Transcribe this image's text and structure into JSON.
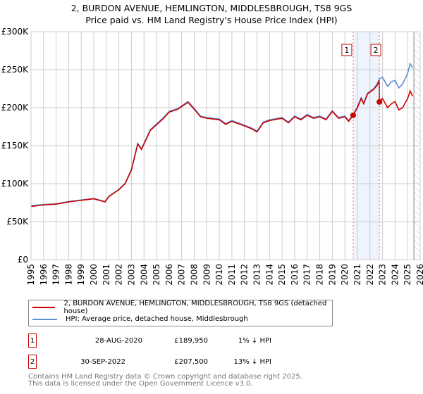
{
  "title": [
    "2, BURDON AVENUE, HEMLINGTON, MIDDLESBROUGH, TS8 9GS",
    "Price paid vs. HM Land Registry's House Price Index (HPI)"
  ],
  "chart_data": {
    "type": "line",
    "xlim": [
      1995,
      2026
    ],
    "ylim": [
      0,
      300000
    ],
    "x_ticks": [
      "1995",
      "1996",
      "1997",
      "1998",
      "1999",
      "2000",
      "2001",
      "2002",
      "2003",
      "2004",
      "2005",
      "2006",
      "2007",
      "2008",
      "2009",
      "2010",
      "2011",
      "2012",
      "2013",
      "2014",
      "2015",
      "2016",
      "2017",
      "2018",
      "2019",
      "2020",
      "2021",
      "2022",
      "2023",
      "2024",
      "2025",
      "2026"
    ],
    "y_ticks": [
      {
        "v": 0,
        "label": "£0"
      },
      {
        "v": 50000,
        "label": "£50K"
      },
      {
        "v": 100000,
        "label": "£100K"
      },
      {
        "v": 150000,
        "label": "£150K"
      },
      {
        "v": 200000,
        "label": "£200K"
      },
      {
        "v": 250000,
        "label": "£250K"
      },
      {
        "v": 300000,
        "label": "£300K"
      }
    ],
    "grid": true,
    "series": [
      {
        "name": "2, BURDON AVENUE, HEMLINGTON, MIDDLESBROUGH, TS8 9GS (detached house)",
        "color": "#cc0000",
        "points": [
          [
            1995,
            70000
          ],
          [
            1996,
            72000
          ],
          [
            1997,
            73000
          ],
          [
            1998,
            76000
          ],
          [
            1999,
            78000
          ],
          [
            2000,
            80000
          ],
          [
            2000.9,
            76000
          ],
          [
            2001.2,
            83000
          ],
          [
            2002,
            92000
          ],
          [
            2002.5,
            100000
          ],
          [
            2003,
            118000
          ],
          [
            2003.5,
            152000
          ],
          [
            2003.8,
            145000
          ],
          [
            2004.5,
            170000
          ],
          [
            2005.5,
            185000
          ],
          [
            2006,
            194000
          ],
          [
            2006.7,
            198000
          ],
          [
            2007.5,
            207000
          ],
          [
            2008,
            198000
          ],
          [
            2008.5,
            188000
          ],
          [
            2009,
            186000
          ],
          [
            2010,
            184000
          ],
          [
            2010.5,
            178000
          ],
          [
            2011,
            182000
          ],
          [
            2012,
            176000
          ],
          [
            2012.6,
            172000
          ],
          [
            2013,
            168000
          ],
          [
            2013.5,
            180000
          ],
          [
            2014,
            183000
          ],
          [
            2015,
            186000
          ],
          [
            2015.5,
            180000
          ],
          [
            2016,
            188000
          ],
          [
            2016.5,
            184000
          ],
          [
            2017,
            190000
          ],
          [
            2017.5,
            186000
          ],
          [
            2018,
            188000
          ],
          [
            2018.5,
            184000
          ],
          [
            2019,
            195000
          ],
          [
            2019.5,
            186000
          ],
          [
            2020,
            188000
          ],
          [
            2020.3,
            182000
          ],
          [
            2020.66,
            189950
          ],
          [
            2021,
            200000
          ],
          [
            2021.3,
            212000
          ],
          [
            2021.5,
            205000
          ],
          [
            2021.8,
            218000
          ],
          [
            2022.3,
            224000
          ],
          [
            2022.6,
            230000
          ],
          [
            2022.74,
            236000
          ],
          [
            2022.75,
            207500
          ],
          [
            2023,
            212000
          ],
          [
            2023.4,
            200000
          ],
          [
            2023.7,
            205000
          ],
          [
            2024,
            208000
          ],
          [
            2024.3,
            197000
          ],
          [
            2024.6,
            200000
          ],
          [
            2025,
            212000
          ],
          [
            2025.2,
            222000
          ],
          [
            2025.4,
            215000
          ]
        ]
      },
      {
        "name": "HPI: Average price, detached house, Middlesbrough",
        "color": "#5b8fd4",
        "points": [
          [
            1995,
            71000
          ],
          [
            1996,
            72500
          ],
          [
            1997,
            73500
          ],
          [
            1998,
            76500
          ],
          [
            1999,
            78500
          ],
          [
            2000,
            80500
          ],
          [
            2000.9,
            76500
          ],
          [
            2001.2,
            83500
          ],
          [
            2002,
            92500
          ],
          [
            2002.5,
            100500
          ],
          [
            2003,
            119000
          ],
          [
            2003.5,
            153000
          ],
          [
            2003.8,
            146000
          ],
          [
            2004.5,
            171000
          ],
          [
            2005.5,
            186000
          ],
          [
            2006,
            195000
          ],
          [
            2006.7,
            199000
          ],
          [
            2007.5,
            208000
          ],
          [
            2008,
            199000
          ],
          [
            2008.5,
            189000
          ],
          [
            2009,
            187000
          ],
          [
            2010,
            185000
          ],
          [
            2010.5,
            179000
          ],
          [
            2011,
            183000
          ],
          [
            2012,
            177000
          ],
          [
            2012.6,
            173000
          ],
          [
            2013,
            169000
          ],
          [
            2013.5,
            181000
          ],
          [
            2014,
            184000
          ],
          [
            2015,
            187000
          ],
          [
            2015.5,
            181000
          ],
          [
            2016,
            189000
          ],
          [
            2016.5,
            185000
          ],
          [
            2017,
            191000
          ],
          [
            2017.5,
            187000
          ],
          [
            2018,
            189000
          ],
          [
            2018.5,
            185000
          ],
          [
            2019,
            196000
          ],
          [
            2019.5,
            187000
          ],
          [
            2020,
            189000
          ],
          [
            2020.3,
            183000
          ],
          [
            2020.66,
            191000
          ],
          [
            2021,
            201000
          ],
          [
            2021.3,
            213000
          ],
          [
            2021.5,
            206000
          ],
          [
            2021.8,
            219000
          ],
          [
            2022.3,
            225000
          ],
          [
            2022.6,
            232000
          ],
          [
            2022.75,
            238000
          ],
          [
            2023,
            240000
          ],
          [
            2023.4,
            228000
          ],
          [
            2023.7,
            234000
          ],
          [
            2024,
            236000
          ],
          [
            2024.3,
            226000
          ],
          [
            2024.6,
            231000
          ],
          [
            2025,
            245000
          ],
          [
            2025.2,
            258000
          ],
          [
            2025.4,
            252000
          ]
        ]
      }
    ],
    "sales": [
      {
        "label": "1",
        "x": 2020.66,
        "value": 189950
      },
      {
        "label": "2",
        "x": 2022.75,
        "value": 207500
      }
    ],
    "future_hatch_from": 2025.5
  },
  "legend": [
    "2, BURDON AVENUE, HEMLINGTON, MIDDLESBROUGH, TS8 9GS (detached house)",
    "HPI: Average price, detached house, Middlesbrough"
  ],
  "transactions": [
    {
      "num": "1",
      "date": "28-AUG-2020",
      "price": "£189,950",
      "hpi": "1% ↓ HPI"
    },
    {
      "num": "2",
      "date": "30-SEP-2022",
      "price": "£207,500",
      "hpi": "13% ↓ HPI"
    }
  ],
  "footer": [
    "Contains HM Land Registry data © Crown copyright and database right 2025.",
    "This data is licensed under the Open Government Licence v3.0."
  ]
}
